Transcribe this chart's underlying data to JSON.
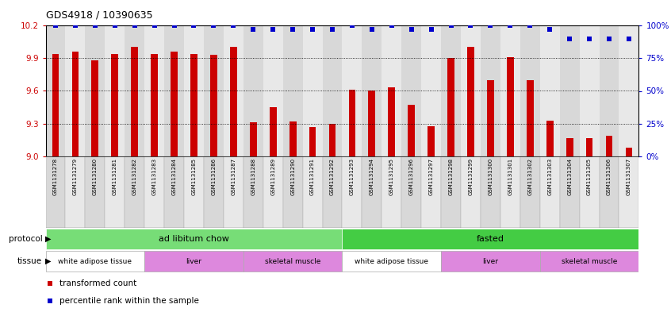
{
  "title": "GDS4918 / 10390635",
  "samples": [
    "GSM1131278",
    "GSM1131279",
    "GSM1131280",
    "GSM1131281",
    "GSM1131282",
    "GSM1131283",
    "GSM1131284",
    "GSM1131285",
    "GSM1131286",
    "GSM1131287",
    "GSM1131288",
    "GSM1131289",
    "GSM1131290",
    "GSM1131291",
    "GSM1131292",
    "GSM1131293",
    "GSM1131294",
    "GSM1131295",
    "GSM1131296",
    "GSM1131297",
    "GSM1131298",
    "GSM1131299",
    "GSM1131300",
    "GSM1131301",
    "GSM1131302",
    "GSM1131303",
    "GSM1131304",
    "GSM1131305",
    "GSM1131306",
    "GSM1131307"
  ],
  "red_values": [
    9.94,
    9.96,
    9.88,
    9.94,
    10.0,
    9.94,
    9.96,
    9.94,
    9.93,
    10.0,
    9.31,
    9.45,
    9.32,
    9.27,
    9.3,
    9.61,
    9.6,
    9.63,
    9.47,
    9.28,
    9.9,
    10.0,
    9.7,
    9.91,
    9.7,
    9.33,
    9.17,
    9.17,
    9.19,
    9.08
  ],
  "blue_values": [
    100,
    100,
    100,
    100,
    100,
    100,
    100,
    100,
    100,
    100,
    97,
    97,
    97,
    97,
    97,
    100,
    97,
    100,
    97,
    97,
    100,
    100,
    100,
    100,
    100,
    97,
    90,
    90,
    90,
    90
  ],
  "ylim_left": [
    9.0,
    10.2
  ],
  "ylim_right": [
    0,
    100
  ],
  "yticks_left": [
    9.0,
    9.3,
    9.6,
    9.9,
    10.2
  ],
  "yticks_right": [
    0,
    25,
    50,
    75,
    100
  ],
  "bar_color": "#cc0000",
  "dot_color": "#0000cc",
  "bg_colors": [
    "#d8d8d8",
    "#e8e8e8"
  ],
  "protocol_groups": [
    {
      "label": "ad libitum chow",
      "start": 0,
      "end": 15,
      "color": "#77dd77"
    },
    {
      "label": "fasted",
      "start": 15,
      "end": 30,
      "color": "#44cc44"
    }
  ],
  "tissue_groups": [
    {
      "label": "white adipose tissue",
      "start": 0,
      "end": 5,
      "color": "#ffffff"
    },
    {
      "label": "liver",
      "start": 5,
      "end": 10,
      "color": "#dd88dd"
    },
    {
      "label": "skeletal muscle",
      "start": 10,
      "end": 15,
      "color": "#dd88dd"
    },
    {
      "label": "white adipose tissue",
      "start": 15,
      "end": 20,
      "color": "#ffffff"
    },
    {
      "label": "liver",
      "start": 20,
      "end": 25,
      "color": "#dd88dd"
    },
    {
      "label": "skeletal muscle",
      "start": 25,
      "end": 30,
      "color": "#dd88dd"
    }
  ]
}
